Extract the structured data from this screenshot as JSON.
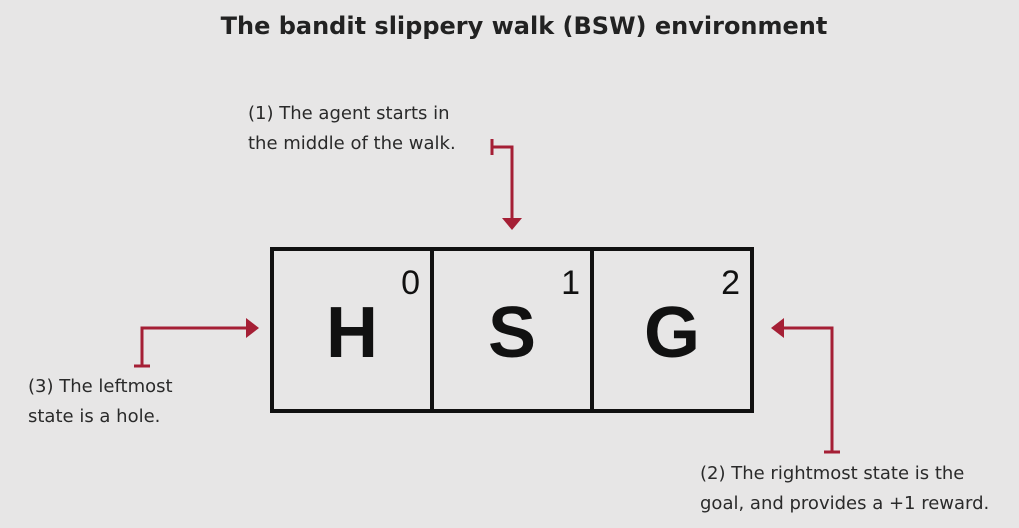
{
  "title": "The bandit slippery walk (BSW) environment",
  "annotations": {
    "start": "(1) The agent starts in\nthe middle of the walk.",
    "goal": "(2) The rightmost state is the\ngoal, and provides a +1 reward.",
    "hole": "(3) The leftmost\nstate is a hole."
  },
  "states": [
    {
      "letter": "H",
      "index": "0"
    },
    {
      "letter": "S",
      "index": "1"
    },
    {
      "letter": "G",
      "index": "2"
    }
  ],
  "colors": {
    "arrow": "#a51f35",
    "background": "#e7e6e6",
    "text": "#222222"
  }
}
